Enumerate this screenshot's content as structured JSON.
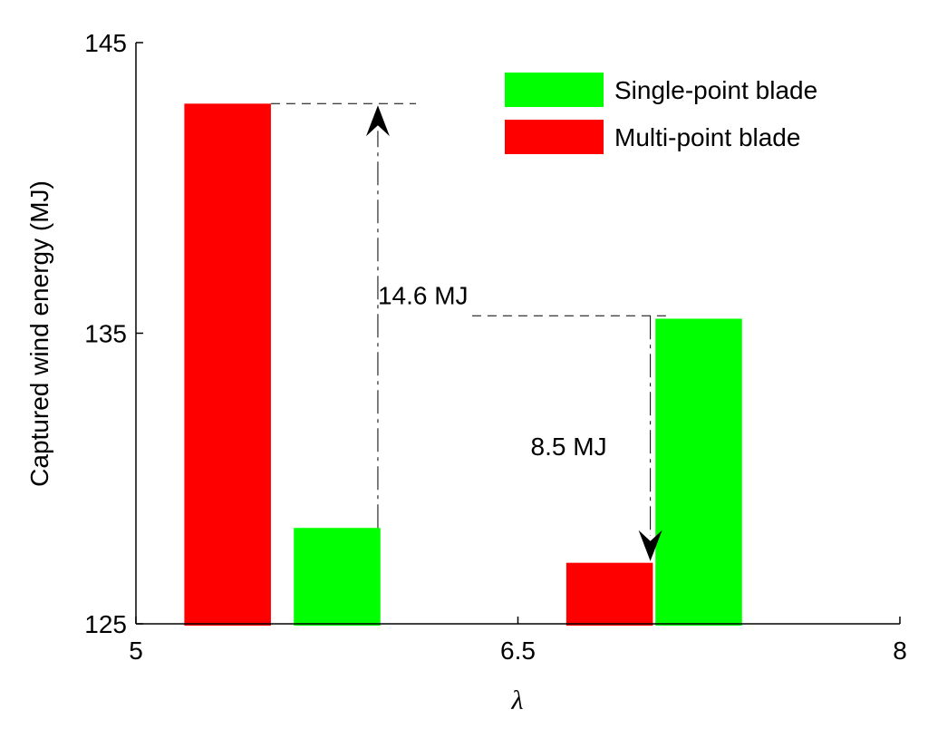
{
  "chart_data": {
    "type": "bar",
    "xlabel": "λ",
    "ylabel": "Captured wind energy (MJ)",
    "xlim": [
      5,
      8
    ],
    "ylim": [
      125,
      145
    ],
    "xticks": [
      5,
      6.5,
      8
    ],
    "xtick_labels": [
      "5",
      "6.5",
      "8"
    ],
    "yticks": [
      125,
      135,
      145
    ],
    "ytick_labels": [
      "125",
      "135",
      "145"
    ],
    "grid": false,
    "legend_position": "top-right",
    "colors": {
      "single": "#00ff00",
      "multi": "#ff0000"
    },
    "bar_width": 0.34,
    "series": [
      {
        "name": "Single-point blade",
        "color": "#00ff00",
        "x": [
          5.79,
          7.21
        ],
        "values": [
          128.3,
          135.5
        ]
      },
      {
        "name": "Multi-point blade",
        "color": "#ff0000",
        "x": [
          5.36,
          6.86
        ],
        "values": [
          142.9,
          127.1
        ]
      }
    ],
    "annotations": [
      {
        "text": "14.6 MJ",
        "x": 5.95,
        "y": 136.0,
        "arrow_x": 5.95,
        "from_y": 128.3,
        "to_y": 142.9,
        "ref_from_x": 5.53,
        "ref_to_x": 6.1,
        "ref_y": 142.9,
        "arrow_dir": "up"
      },
      {
        "text": "8.5 MJ",
        "x": 6.55,
        "y": 130.8,
        "arrow_x": 7.02,
        "from_y": 135.6,
        "to_y": 127.1,
        "ref_from_x": 6.32,
        "ref_to_x": 7.1,
        "ref_y": 135.6,
        "arrow_dir": "down"
      }
    ]
  }
}
